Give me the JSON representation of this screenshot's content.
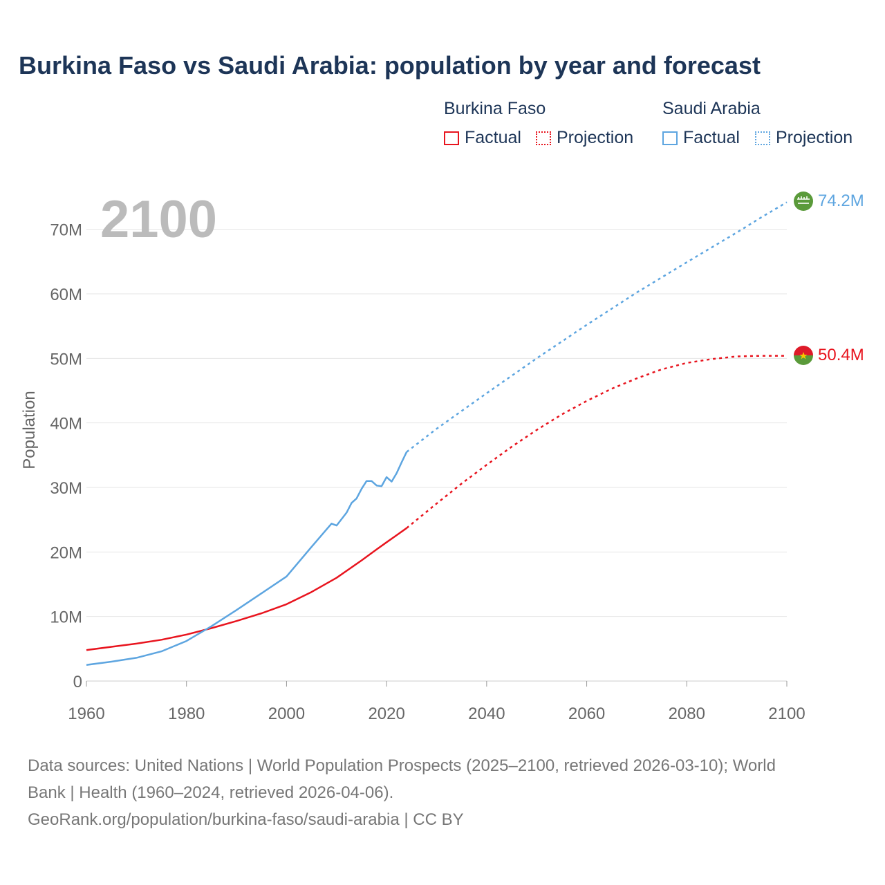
{
  "title": "Burkina Faso vs Saudi Arabia: population by year and forecast",
  "legend": {
    "groups": [
      {
        "name": "Burkina Faso",
        "color": "#e8141e",
        "factual": "Factual",
        "projection": "Projection"
      },
      {
        "name": "Saudi Arabia",
        "color": "#5da5e0",
        "factual": "Factual",
        "projection": "Projection"
      }
    ]
  },
  "year_label": "2100",
  "footer": {
    "line1": "Data sources: United Nations | World Population Prospects (2025–2100, retrieved 2026-03-10); World",
    "line2": "Bank | Health (1960–2024, retrieved 2026-04-06).",
    "line3": "GeoRank.org/population/burkina-faso/saudi-arabia | CC BY"
  },
  "chart_data": {
    "type": "line",
    "title": "Burkina Faso vs Saudi Arabia: population by year and forecast",
    "ylabel": "Population",
    "xlabel": "",
    "xlim": [
      1960,
      2100
    ],
    "ylim": [
      0,
      75000000
    ],
    "x_ticks": [
      "1960",
      "1980",
      "2000",
      "2020",
      "2040",
      "2060",
      "2080",
      "2100"
    ],
    "y_ticks": [
      {
        "value": 0,
        "label": "0"
      },
      {
        "value": 10000000,
        "label": "10M"
      },
      {
        "value": 20000000,
        "label": "20M"
      },
      {
        "value": 30000000,
        "label": "30M"
      },
      {
        "value": 40000000,
        "label": "40M"
      },
      {
        "value": 50000000,
        "label": "50M"
      },
      {
        "value": 60000000,
        "label": "60M"
      },
      {
        "value": 70000000,
        "label": "70M"
      }
    ],
    "grid": true,
    "series": [
      {
        "name": "Burkina Faso",
        "color": "#e8141e",
        "end_label": "50.4M",
        "factual": {
          "x": [
            1960,
            1965,
            1970,
            1975,
            1980,
            1985,
            1990,
            1995,
            2000,
            2005,
            2010,
            2015,
            2018,
            2020,
            2022,
            2024
          ],
          "y": [
            4800000,
            5300000,
            5800000,
            6400000,
            7200000,
            8200000,
            9300000,
            10500000,
            11900000,
            13800000,
            16000000,
            18700000,
            20400000,
            21500000,
            22600000,
            23700000
          ]
        },
        "projection": {
          "x": [
            2024,
            2030,
            2035,
            2040,
            2045,
            2050,
            2055,
            2060,
            2065,
            2070,
            2075,
            2080,
            2085,
            2090,
            2095,
            2100
          ],
          "y": [
            23700000,
            27500000,
            30600000,
            33500000,
            36300000,
            38900000,
            41300000,
            43400000,
            45300000,
            46900000,
            48300000,
            49300000,
            49900000,
            50300000,
            50400000,
            50400000
          ]
        }
      },
      {
        "name": "Saudi Arabia",
        "color": "#5da5e0",
        "end_label": "74.2M",
        "factual": {
          "x": [
            1960,
            1965,
            1970,
            1975,
            1980,
            1985,
            1990,
            1995,
            2000,
            2005,
            2009,
            2010,
            2012,
            2013,
            2014,
            2015,
            2016,
            2017,
            2018,
            2019,
            2020,
            2021,
            2022,
            2023,
            2024
          ],
          "y": [
            2500000,
            3000000,
            3600000,
            4600000,
            6200000,
            8500000,
            11000000,
            13600000,
            16200000,
            20800000,
            24400000,
            24100000,
            26100000,
            27600000,
            28300000,
            29800000,
            31000000,
            31000000,
            30300000,
            30200000,
            31600000,
            30900000,
            32200000,
            33900000,
            35500000
          ]
        },
        "projection": {
          "x": [
            2024,
            2030,
            2040,
            2050,
            2060,
            2070,
            2080,
            2090,
            2095,
            2100
          ],
          "y": [
            35500000,
            39100000,
            44600000,
            50000000,
            55200000,
            60200000,
            64900000,
            69500000,
            71900000,
            74200000
          ]
        }
      }
    ]
  }
}
